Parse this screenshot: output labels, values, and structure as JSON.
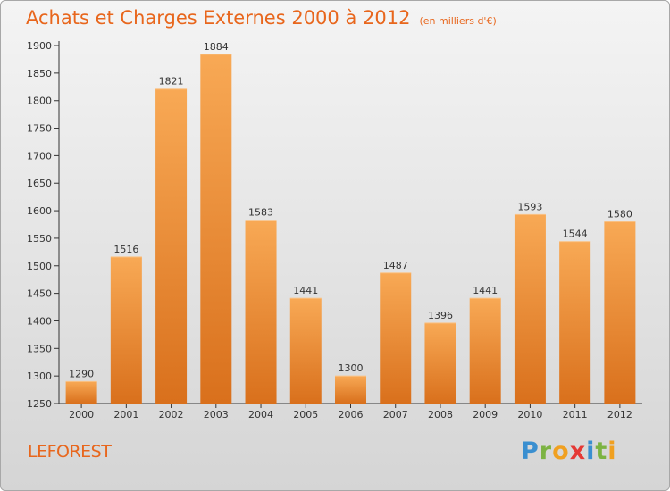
{
  "title": "Achats et Charges Externes 2000 à 2012",
  "subtitle": "(en milliers d'€)",
  "commune": "LEFOREST",
  "logo": {
    "text": "Proxiti",
    "letters": [
      {
        "ch": "P",
        "color": "#3a8fd0"
      },
      {
        "ch": "r",
        "color": "#7cb342"
      },
      {
        "ch": "o",
        "color": "#f0a020"
      },
      {
        "ch": "x",
        "color": "#e53935"
      },
      {
        "ch": "i",
        "color": "#3a8fd0"
      },
      {
        "ch": "t",
        "color": "#7cb342"
      },
      {
        "ch": "i",
        "color": "#f0a020"
      }
    ]
  },
  "colors": {
    "accent": "#e8661c",
    "bar_light": "#f8a955",
    "bar_dark": "#d9701c",
    "axis": "#333333"
  },
  "chart_data": {
    "type": "bar",
    "categories": [
      "2000",
      "2001",
      "2002",
      "2003",
      "2004",
      "2005",
      "2006",
      "2007",
      "2008",
      "2009",
      "2010",
      "2011",
      "2012"
    ],
    "values": [
      1290,
      1516,
      1821,
      1884,
      1583,
      1441,
      1300,
      1487,
      1396,
      1441,
      1593,
      1544,
      1580
    ],
    "ylim": [
      1250,
      1900
    ],
    "yticks": [
      1250,
      1300,
      1350,
      1400,
      1450,
      1500,
      1550,
      1600,
      1650,
      1700,
      1750,
      1800,
      1850,
      1900
    ],
    "grid": false,
    "data_labels": true
  }
}
